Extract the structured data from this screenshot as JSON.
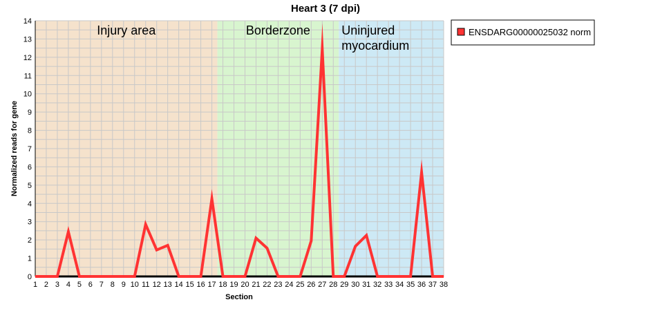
{
  "chart_data": {
    "type": "line",
    "title": "Heart 3 (7 dpi)",
    "xlabel": "Section",
    "ylabel": "Normalized reads for gene",
    "xlim": [
      1,
      38
    ],
    "ylim": [
      0,
      14
    ],
    "x": [
      1,
      2,
      3,
      4,
      5,
      6,
      7,
      8,
      9,
      10,
      11,
      12,
      13,
      14,
      15,
      16,
      17,
      18,
      19,
      20,
      21,
      22,
      23,
      24,
      25,
      26,
      27,
      28,
      29,
      30,
      31,
      32,
      33,
      34,
      35,
      36,
      37,
      38
    ],
    "y_ticks": [
      0,
      1,
      2,
      3,
      4,
      5,
      6,
      7,
      8,
      9,
      10,
      11,
      12,
      13,
      14
    ],
    "grid": true,
    "legend_position": "top-right, outside plot",
    "series": [
      {
        "name": "ENSDARG00000025032 norm",
        "color": "#ff3333",
        "values": [
          0,
          0,
          0,
          2.45,
          0,
          0,
          0,
          0,
          0,
          0,
          2.85,
          1.45,
          1.7,
          0,
          0,
          0,
          4.25,
          0,
          0,
          0,
          2.1,
          1.55,
          0,
          0,
          0,
          1.95,
          12.45,
          0,
          0,
          1.65,
          2.25,
          0,
          0,
          0,
          0,
          5.7,
          0,
          0
        ]
      }
    ],
    "regions": [
      {
        "label": "Injury area",
        "x_start": 1,
        "x_end": 17.5,
        "color": "#f5e2cc"
      },
      {
        "label": "Borderzone",
        "x_start": 17.5,
        "x_end": 28.5,
        "color": "#d8f5cf"
      },
      {
        "label_lines": [
          "Uninjured",
          "myocardium"
        ],
        "x_start": 28.5,
        "x_end": 38,
        "color": "#cde9f5"
      }
    ]
  }
}
